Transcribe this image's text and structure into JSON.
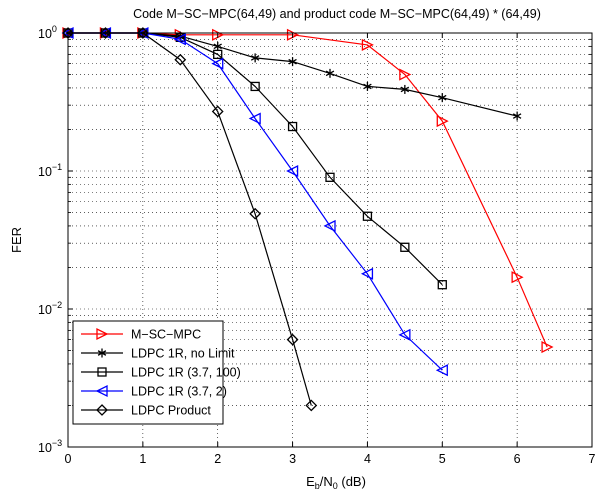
{
  "chart_data": {
    "type": "line",
    "title": "Code M−SC−MPC(64,49) and product code M−SC−MPC(64,49) * (64,49)",
    "xlabel": {
      "base": "E",
      "sub1": "b",
      "mid": "/N",
      "sub2": "0",
      "tail": " (dB)"
    },
    "ylabel": "FER",
    "xlim": [
      0,
      7
    ],
    "ylim": [
      0.001,
      1
    ],
    "yscale": "log",
    "grid": true,
    "grid_style": "dotted",
    "legend_position": "bottom-left",
    "x_ticks": [
      "0",
      "1",
      "2",
      "3",
      "4",
      "5",
      "6",
      "7"
    ],
    "y_ticks": [
      {
        "base": "10",
        "exp": "0"
      },
      {
        "base": "10",
        "exp": "−1"
      },
      {
        "base": "10",
        "exp": "−2"
      },
      {
        "base": "10",
        "exp": "−3"
      }
    ],
    "series": [
      {
        "name": "M−SC−MPC",
        "color": "#ff0000",
        "marker": "triangle-right",
        "x": [
          0,
          0.5,
          1,
          1.5,
          2,
          3,
          4,
          4.5,
          5,
          6,
          6.4
        ],
        "y": [
          1,
          1,
          1,
          0.97,
          0.97,
          0.97,
          0.82,
          0.5,
          0.23,
          0.017,
          0.0053
        ]
      },
      {
        "name": "LDPC 1R, no Limit",
        "color": "#000000",
        "marker": "asterisk",
        "x": [
          0,
          0.5,
          1,
          1.5,
          2,
          2.5,
          3,
          3.5,
          4,
          4.5,
          5,
          6
        ],
        "y": [
          1,
          1,
          1,
          0.95,
          0.8,
          0.66,
          0.62,
          0.51,
          0.41,
          0.39,
          0.34,
          0.25
        ]
      },
      {
        "name": "LDPC 1R (3.7, 100)",
        "color": "#000000",
        "marker": "square",
        "x": [
          0,
          0.5,
          1,
          1.5,
          2,
          2.5,
          3,
          3.5,
          4,
          4.5,
          5
        ],
        "y": [
          1,
          1,
          1,
          0.93,
          0.7,
          0.41,
          0.21,
          0.09,
          0.047,
          0.028,
          0.015
        ]
      },
      {
        "name": "LDPC 1R (3.7, 2)",
        "color": "#0000ff",
        "marker": "triangle-left",
        "x": [
          0,
          0.5,
          1,
          1.5,
          2,
          2.5,
          3,
          3.5,
          4,
          4.5,
          5
        ],
        "y": [
          1,
          1,
          1,
          0.9,
          0.6,
          0.24,
          0.1,
          0.04,
          0.018,
          0.0065,
          0.0036
        ]
      },
      {
        "name": "LDPC Product",
        "color": "#000000",
        "marker": "diamond",
        "x": [
          0,
          0.5,
          1,
          1.5,
          2,
          2.5,
          3,
          3.25
        ],
        "y": [
          1,
          1,
          1,
          0.64,
          0.27,
          0.049,
          0.006,
          0.002
        ]
      }
    ]
  }
}
